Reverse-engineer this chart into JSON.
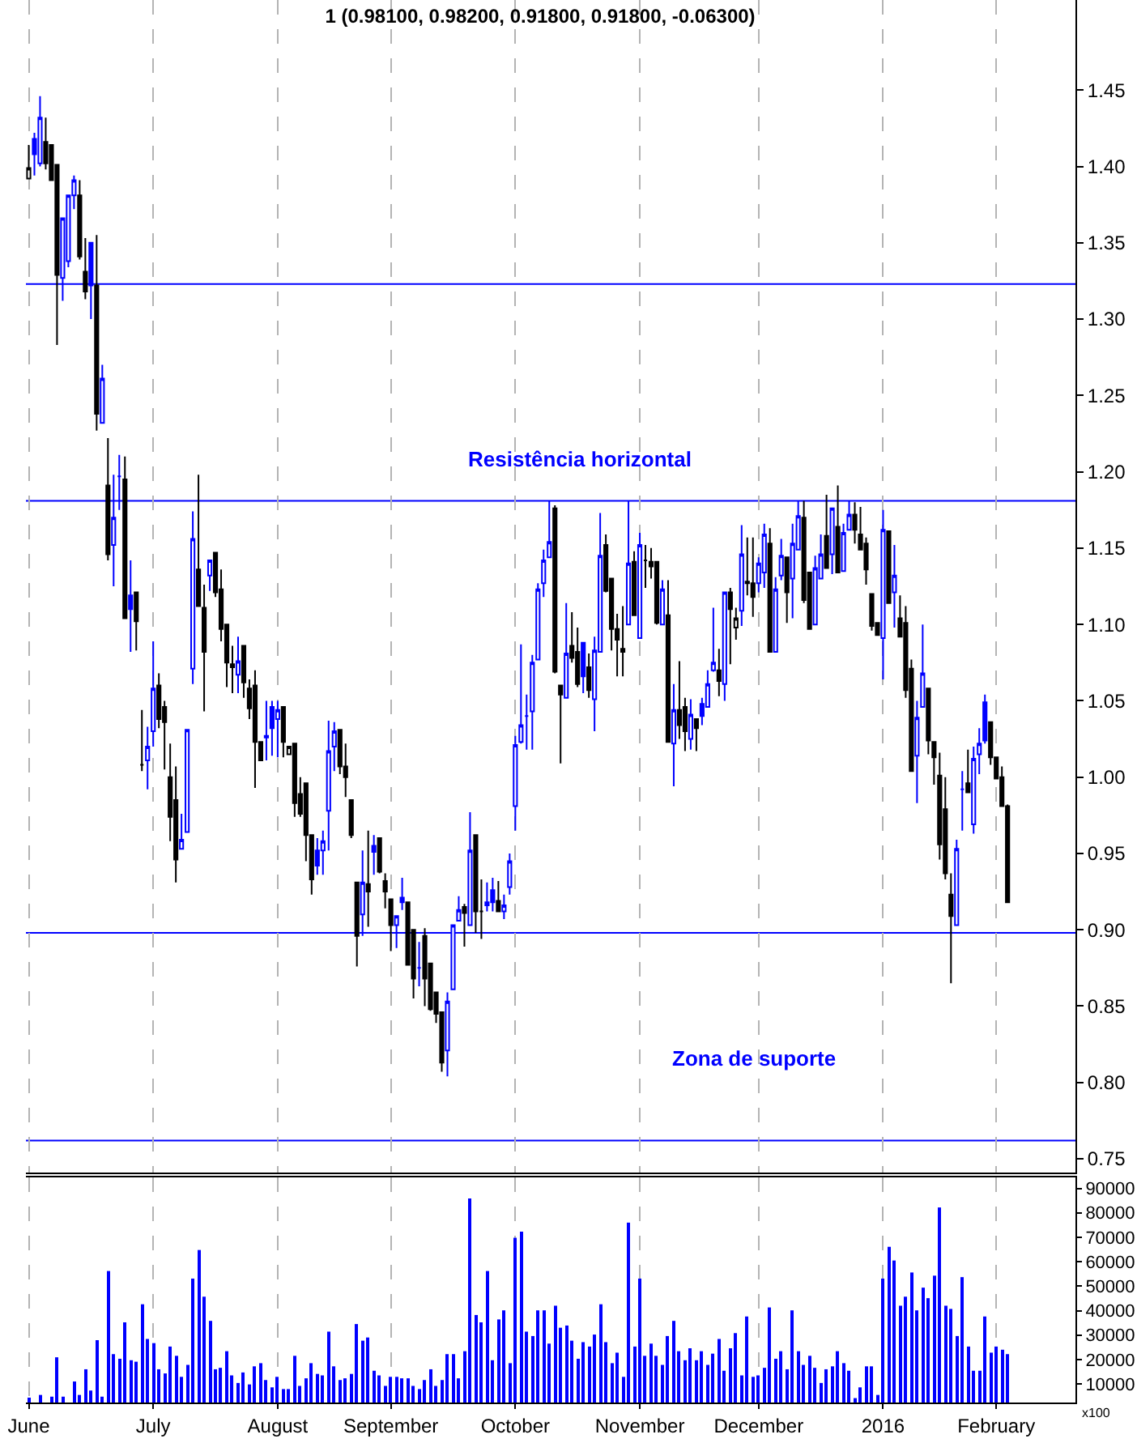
{
  "chart_data": [
    {
      "type": "candlestick",
      "title": "1 (0.98100, 0.98200, 0.91800, 0.91800, -0.06300)",
      "categories": [
        null,
        null,
        null,
        null,
        null,
        null,
        null,
        null,
        null,
        null,
        null,
        null,
        null,
        null,
        null,
        null,
        null,
        null,
        null,
        null,
        null,
        null,
        null,
        null,
        null,
        null,
        null,
        null,
        null,
        null,
        null,
        null,
        null,
        null,
        null,
        null,
        null,
        null,
        null,
        null,
        null,
        null,
        null,
        null,
        null,
        null,
        null,
        null,
        null,
        null,
        null,
        null,
        null,
        null,
        null,
        null,
        null,
        null,
        null,
        null,
        null,
        null,
        null,
        null,
        null,
        null,
        null,
        null,
        null,
        null,
        null,
        null,
        null,
        null,
        null,
        null,
        null,
        null,
        null,
        null,
        null,
        null,
        null,
        null,
        null,
        null,
        null,
        null,
        null,
        null,
        null,
        null,
        null,
        null,
        null,
        null,
        null,
        null,
        null,
        null,
        null,
        null,
        null,
        null,
        null,
        null,
        null,
        null,
        null,
        null,
        null,
        null,
        null,
        null,
        null,
        null,
        null,
        null,
        null,
        null,
        null,
        null,
        null,
        null,
        null,
        null,
        null,
        null,
        null,
        null,
        null,
        null,
        null,
        null,
        null,
        null,
        null,
        null,
        null,
        null,
        null,
        null,
        null,
        null,
        null,
        null,
        null,
        null,
        null,
        null,
        null,
        null,
        null,
        null,
        null,
        null,
        null,
        null,
        null,
        null,
        null,
        null,
        null,
        null,
        null,
        null,
        null,
        null,
        null,
        null,
        null,
        null,
        null,
        null
      ],
      "ohlc": [
        [
          1.392,
          1.414,
          1.392,
          1.399
        ],
        [
          1.418,
          1.422,
          1.394,
          1.408
        ],
        [
          1.402,
          1.446,
          1.4,
          1.432
        ],
        [
          1.416,
          1.432,
          1.398,
          1.402
        ],
        [
          1.414,
          1.414,
          1.391,
          1.391
        ],
        [
          1.401,
          1.401,
          1.283,
          1.329
        ],
        [
          1.327,
          1.366,
          1.312,
          1.366
        ],
        [
          1.338,
          1.381,
          1.334,
          1.381
        ],
        [
          1.381,
          1.394,
          1.372,
          1.391
        ],
        [
          1.381,
          1.391,
          1.339,
          1.341
        ],
        [
          1.331,
          1.353,
          1.313,
          1.318
        ],
        [
          1.35,
          1.35,
          1.3,
          1.322
        ],
        [
          1.322,
          1.355,
          1.227,
          1.238
        ],
        [
          1.232,
          1.27,
          1.232,
          1.261
        ],
        [
          1.191,
          1.222,
          1.142,
          1.146
        ],
        [
          1.152,
          1.198,
          1.125,
          1.17
        ],
        [
          1.197,
          1.211,
          1.175,
          1.197
        ],
        [
          1.195,
          1.21,
          1.104,
          1.104
        ],
        [
          1.119,
          1.142,
          1.082,
          1.11
        ],
        [
          1.121,
          1.121,
          1.083,
          1.102
        ],
        [
          1.008,
          1.044,
          1.004,
          1.008
        ],
        [
          1.011,
          1.033,
          0.992,
          1.02
        ],
        [
          1.03,
          1.089,
          1.02,
          1.058
        ],
        [
          1.06,
          1.068,
          1.032,
          1.038
        ],
        [
          1.046,
          1.05,
          1.005,
          1.036
        ],
        [
          1.0,
          1.022,
          0.958,
          0.974
        ],
        [
          0.985,
          1.007,
          0.931,
          0.946
        ],
        [
          0.953,
          0.976,
          0.953,
          0.959
        ],
        [
          0.964,
          1.031,
          0.964,
          1.031
        ],
        [
          1.071,
          1.174,
          1.061,
          1.156
        ],
        [
          1.136,
          1.198,
          1.112,
          1.112
        ],
        [
          1.111,
          1.126,
          1.043,
          1.082
        ],
        [
          1.132,
          1.142,
          1.122,
          1.142
        ],
        [
          1.147,
          1.147,
          1.118,
          1.121
        ],
        [
          1.123,
          1.136,
          1.089,
          1.097
        ],
        [
          1.1,
          1.1,
          1.059,
          1.075
        ],
        [
          1.072,
          1.086,
          1.055,
          1.074
        ],
        [
          1.067,
          1.092,
          1.055,
          1.076
        ],
        [
          1.086,
          1.086,
          1.052,
          1.062
        ],
        [
          1.058,
          1.064,
          1.038,
          1.045
        ],
        [
          1.06,
          1.07,
          0.993,
          1.023
        ],
        [
          1.023,
          1.023,
          1.011,
          1.011
        ],
        [
          1.026,
          1.05,
          1.011,
          1.027
        ],
        [
          1.046,
          1.05,
          1.014,
          1.032
        ],
        [
          1.038,
          1.05,
          1.013,
          1.044
        ],
        [
          1.046,
          1.046,
          1.013,
          1.023
        ],
        [
          1.015,
          1.02,
          1.015,
          1.02
        ],
        [
          1.022,
          1.022,
          0.974,
          0.983
        ],
        [
          0.989,
          1.0,
          0.974,
          0.976
        ],
        [
          0.996,
          0.996,
          0.945,
          0.962
        ],
        [
          0.962,
          0.962,
          0.923,
          0.933
        ],
        [
          0.952,
          0.96,
          0.936,
          0.942
        ],
        [
          0.952,
          0.965,
          0.936,
          0.958
        ],
        [
          0.978,
          1.037,
          0.952,
          1.017
        ],
        [
          1.02,
          1.036,
          1.004,
          1.03
        ],
        [
          1.031,
          1.031,
          1.002,
          1.007
        ],
        [
          1.007,
          1.022,
          0.987,
          1.0
        ],
        [
          0.985,
          0.985,
          0.96,
          0.962
        ],
        [
          0.931,
          0.931,
          0.876,
          0.896
        ],
        [
          0.91,
          0.952,
          0.896,
          0.931
        ],
        [
          0.93,
          0.965,
          0.902,
          0.925
        ],
        [
          0.955,
          0.962,
          0.936,
          0.951
        ],
        [
          0.96,
          0.96,
          0.937,
          0.938
        ],
        [
          0.932,
          0.937,
          0.914,
          0.925
        ],
        [
          0.92,
          0.92,
          0.886,
          0.903
        ],
        [
          0.903,
          0.909,
          0.888,
          0.909
        ],
        [
          0.921,
          0.934,
          0.913,
          0.918
        ],
        [
          0.918,
          0.918,
          0.877,
          0.877
        ],
        [
          0.9,
          0.9,
          0.855,
          0.868
        ],
        [
          0.875,
          0.892,
          0.863,
          0.875
        ],
        [
          0.896,
          0.901,
          0.85,
          0.868
        ],
        [
          0.878,
          0.878,
          0.847,
          0.848
        ],
        [
          0.859,
          0.859,
          0.839,
          0.845
        ],
        [
          0.846,
          0.846,
          0.807,
          0.813
        ],
        [
          0.821,
          0.859,
          0.804,
          0.853
        ],
        [
          0.861,
          0.903,
          0.861,
          0.903
        ],
        [
          0.906,
          0.922,
          0.906,
          0.913
        ],
        [
          0.915,
          0.917,
          0.889,
          0.911
        ],
        [
          0.903,
          0.977,
          0.903,
          0.952
        ],
        [
          0.962,
          0.962,
          0.898,
          0.912
        ],
        [
          0.912,
          0.933,
          0.894,
          0.912
        ],
        [
          0.918,
          0.931,
          0.912,
          0.916
        ],
        [
          0.926,
          0.934,
          0.912,
          0.918
        ],
        [
          0.919,
          0.932,
          0.912,
          0.912
        ],
        [
          0.912,
          0.923,
          0.907,
          0.916
        ],
        [
          0.928,
          0.95,
          0.923,
          0.945
        ],
        [
          0.981,
          1.027,
          0.965,
          1.021
        ],
        [
          1.023,
          1.087,
          1.022,
          1.034
        ],
        [
          1.04,
          1.054,
          1.018,
          1.04
        ],
        [
          1.043,
          1.08,
          1.018,
          1.075
        ],
        [
          1.077,
          1.127,
          1.077,
          1.123
        ],
        [
          1.127,
          1.149,
          1.118,
          1.142
        ],
        [
          1.144,
          1.181,
          1.144,
          1.154
        ],
        [
          1.176,
          1.178,
          1.068,
          1.069
        ],
        [
          1.06,
          1.06,
          1.009,
          1.054
        ],
        [
          1.052,
          1.114,
          1.052,
          1.081
        ],
        [
          1.086,
          1.108,
          1.075,
          1.078
        ],
        [
          1.082,
          1.098,
          1.059,
          1.061
        ],
        [
          1.088,
          1.088,
          1.055,
          1.066
        ],
        [
          1.072,
          1.081,
          1.052,
          1.057
        ],
        [
          1.051,
          1.092,
          1.03,
          1.083
        ],
        [
          1.082,
          1.173,
          1.082,
          1.145
        ],
        [
          1.152,
          1.159,
          1.121,
          1.122
        ],
        [
          1.13,
          1.13,
          1.083,
          1.097
        ],
        [
          1.097,
          1.107,
          1.066,
          1.09
        ],
        [
          1.084,
          1.112,
          1.066,
          1.082
        ],
        [
          1.1,
          1.181,
          1.1,
          1.14
        ],
        [
          1.141,
          1.148,
          1.106,
          1.106
        ],
        [
          1.091,
          1.16,
          1.091,
          1.152
        ],
        [
          1.142,
          1.152,
          1.124,
          1.142
        ],
        [
          1.141,
          1.15,
          1.13,
          1.138
        ],
        [
          1.141,
          1.141,
          1.1,
          1.101
        ],
        [
          1.1,
          1.129,
          1.1,
          1.123
        ],
        [
          1.106,
          1.129,
          1.023,
          1.023
        ],
        [
          1.022,
          1.061,
          0.994,
          1.044
        ],
        [
          1.044,
          1.076,
          1.025,
          1.034
        ],
        [
          1.046,
          1.052,
          1.017,
          1.03
        ],
        [
          1.025,
          1.051,
          1.018,
          1.041
        ],
        [
          1.038,
          1.038,
          1.017,
          1.032
        ],
        [
          1.048,
          1.052,
          1.034,
          1.04
        ],
        [
          1.046,
          1.07,
          1.046,
          1.061
        ],
        [
          1.07,
          1.111,
          1.069,
          1.075
        ],
        [
          1.07,
          1.084,
          1.053,
          1.063
        ],
        [
          1.061,
          1.121,
          1.05,
          1.121
        ],
        [
          1.121,
          1.124,
          1.074,
          1.11
        ],
        [
          1.098,
          1.111,
          1.09,
          1.104
        ],
        [
          1.109,
          1.165,
          1.099,
          1.146
        ],
        [
          1.128,
          1.157,
          1.119,
          1.127
        ],
        [
          1.127,
          1.157,
          1.105,
          1.118
        ],
        [
          1.127,
          1.144,
          1.121,
          1.14
        ],
        [
          1.134,
          1.166,
          1.124,
          1.159
        ],
        [
          1.153,
          1.163,
          1.082,
          1.082
        ],
        [
          1.082,
          1.131,
          1.082,
          1.123
        ],
        [
          1.132,
          1.156,
          1.129,
          1.145
        ],
        [
          1.144,
          1.144,
          1.101,
          1.121
        ],
        [
          1.13,
          1.166,
          1.104,
          1.153
        ],
        [
          1.149,
          1.181,
          1.149,
          1.171
        ],
        [
          1.17,
          1.181,
          1.114,
          1.116
        ],
        [
          1.134,
          1.134,
          1.097,
          1.097
        ],
        [
          1.1,
          1.145,
          1.1,
          1.137
        ],
        [
          1.13,
          1.159,
          1.13,
          1.146
        ],
        [
          1.158,
          1.185,
          1.137,
          1.137
        ],
        [
          1.146,
          1.176,
          1.133,
          1.176
        ],
        [
          1.164,
          1.191,
          1.134,
          1.134
        ],
        [
          1.135,
          1.166,
          1.135,
          1.16
        ],
        [
          1.162,
          1.181,
          1.162,
          1.172
        ],
        [
          1.172,
          1.18,
          1.153,
          1.162
        ],
        [
          1.159,
          1.177,
          1.149,
          1.149
        ],
        [
          1.153,
          1.157,
          1.126,
          1.136
        ],
        [
          1.12,
          1.12,
          1.096,
          1.099
        ],
        [
          1.101,
          1.101,
          1.093,
          1.093
        ],
        [
          1.091,
          1.175,
          1.064,
          1.162
        ],
        [
          1.161,
          1.161,
          1.114,
          1.114
        ],
        [
          1.121,
          1.152,
          1.098,
          1.132
        ],
        [
          1.104,
          1.119,
          1.092,
          1.092
        ],
        [
          1.101,
          1.112,
          1.052,
          1.057
        ],
        [
          1.071,
          1.077,
          1.004,
          1.004
        ],
        [
          1.014,
          1.05,
          0.983,
          1.039
        ],
        [
          1.046,
          1.1,
          1.046,
          1.068
        ],
        [
          1.058,
          1.058,
          1.015,
          1.024
        ],
        [
          1.023,
          1.023,
          0.995,
          1.013
        ],
        [
          1.001,
          1.016,
          0.946,
          0.956
        ],
        [
          0.979,
          1.0,
          0.933,
          0.937
        ],
        [
          0.923,
          0.937,
          0.865,
          0.909
        ],
        [
          0.903,
          0.959,
          0.903,
          0.953
        ],
        [
          0.992,
          1.004,
          0.965,
          0.992
        ],
        [
          0.996,
          1.018,
          0.99,
          0.99
        ],
        [
          0.969,
          1.02,
          0.963,
          1.012
        ],
        [
          1.015,
          1.032,
          1.002,
          1.022
        ],
        [
          1.049,
          1.054,
          1.022,
          1.024
        ],
        [
          1.036,
          1.036,
          1.008,
          1.013
        ],
        [
          1.013,
          1.013,
          0.999,
          0.999
        ],
        [
          1.0,
          1.007,
          0.981,
          0.981
        ],
        [
          0.981,
          0.982,
          0.918,
          0.918
        ]
      ],
      "colors": [
        "#000000",
        "#0000ff",
        "#0000ff",
        "#000000",
        "#000000",
        "#000000",
        "#0000ff",
        "#0000ff",
        "#0000ff",
        "#000000",
        "#000000",
        "#0000ff",
        "#000000",
        "#0000ff",
        "#000000",
        "#0000ff",
        "#0000ff",
        "#000000",
        "#0000ff",
        "#000000",
        "#000000",
        "#0000ff",
        "#0000ff",
        "#000000",
        "#000000",
        "#000000",
        "#000000",
        "#0000ff",
        "#0000ff",
        "#0000ff",
        "#000000",
        "#000000",
        "#0000ff",
        "#000000",
        "#000000",
        "#000000",
        "#000000",
        "#0000ff",
        "#000000",
        "#000000",
        "#000000",
        "#000000",
        "#0000ff",
        "#0000ff",
        "#0000ff",
        "#000000",
        "#000000",
        "#000000",
        "#000000",
        "#000000",
        "#000000",
        "#0000ff",
        "#0000ff",
        "#0000ff",
        "#0000ff",
        "#000000",
        "#000000",
        "#000000",
        "#000000",
        "#0000ff",
        "#000000",
        "#0000ff",
        "#000000",
        "#000000",
        "#000000",
        "#0000ff",
        "#0000ff",
        "#000000",
        "#000000",
        "#0000ff",
        "#000000",
        "#000000",
        "#000000",
        "#000000",
        "#0000ff",
        "#0000ff",
        "#0000ff",
        "#000000",
        "#0000ff",
        "#000000",
        "#000000",
        "#0000ff",
        "#0000ff",
        "#000000",
        "#0000ff",
        "#0000ff",
        "#0000ff",
        "#0000ff",
        "#0000ff",
        "#0000ff",
        "#0000ff",
        "#0000ff",
        "#0000ff",
        "#000000",
        "#000000",
        "#0000ff",
        "#000000",
        "#000000",
        "#0000ff",
        "#000000",
        "#0000ff",
        "#0000ff",
        "#000000",
        "#000000",
        "#000000",
        "#000000",
        "#0000ff",
        "#000000",
        "#0000ff",
        "#000000",
        "#000000",
        "#000000",
        "#0000ff",
        "#000000",
        "#0000ff",
        "#000000",
        "#000000",
        "#0000ff",
        "#000000",
        "#0000ff",
        "#0000ff",
        "#0000ff",
        "#000000",
        "#0000ff",
        "#000000",
        "#000000",
        "#0000ff",
        "#000000",
        "#000000",
        "#0000ff",
        "#0000ff",
        "#000000",
        "#0000ff",
        "#0000ff",
        "#000000",
        "#0000ff",
        "#0000ff",
        "#000000",
        "#000000",
        "#0000ff",
        "#0000ff",
        "#000000",
        "#0000ff",
        "#000000",
        "#0000ff",
        "#0000ff",
        "#000000",
        "#000000",
        "#000000",
        "#000000",
        "#000000",
        "#0000ff",
        "#000000",
        "#0000ff",
        "#000000",
        "#000000",
        "#000000",
        "#0000ff",
        "#0000ff",
        "#000000",
        "#000000",
        "#000000",
        "#000000",
        "#000000",
        "#0000ff",
        "#0000ff",
        "#000000",
        "#0000ff",
        "#0000ff",
        "#0000ff",
        "#000000",
        "#000000",
        "#000000",
        "#000000"
      ],
      "ylim": [
        0.741,
        1.509
      ],
      "yticks": [
        {
          "value": 0.75,
          "label": "0.75"
        },
        {
          "value": 0.8,
          "label": "0.80"
        },
        {
          "value": 0.85,
          "label": "0.85"
        },
        {
          "value": 0.9,
          "label": "0.90"
        },
        {
          "value": 0.95,
          "label": "0.95"
        },
        {
          "value": 1.0,
          "label": "1.00"
        },
        {
          "value": 1.05,
          "label": "1.05"
        },
        {
          "value": 1.1,
          "label": "1.10"
        },
        {
          "value": 1.15,
          "label": "1.15"
        },
        {
          "value": 1.2,
          "label": "1.20"
        },
        {
          "value": 1.25,
          "label": "1.25"
        },
        {
          "value": 1.3,
          "label": "1.30"
        },
        {
          "value": 1.35,
          "label": "1.35"
        },
        {
          "value": 1.4,
          "label": "1.40"
        },
        {
          "value": 1.45,
          "label": "1.45"
        }
      ],
      "grid": "x",
      "tick_labels": "y",
      "ref_lines": [
        {
          "axis": "y",
          "value": 1.323,
          "color": "#0000ff"
        },
        {
          "axis": "y",
          "value": 1.181,
          "color": "#0000ff"
        },
        {
          "axis": "y",
          "value": 0.898,
          "color": "#0000ff"
        },
        {
          "axis": "y",
          "value": 0.762,
          "color": "#0000ff"
        }
      ],
      "annotations": [
        "Resistência horizontal",
        "Zona de suporte"
      ]
    },
    {
      "type": "bar",
      "categories": [
        "June",
        null,
        null,
        null,
        null,
        null,
        null,
        null,
        null,
        null,
        null,
        null,
        null,
        null,
        null,
        null,
        null,
        null,
        null,
        null,
        null,
        null,
        "July",
        null,
        null,
        null,
        null,
        null,
        null,
        null,
        null,
        null,
        null,
        null,
        null,
        null,
        null,
        null,
        null,
        null,
        null,
        null,
        null,
        null,
        "August",
        null,
        null,
        null,
        null,
        null,
        null,
        null,
        null,
        null,
        null,
        null,
        null,
        null,
        null,
        null,
        null,
        null,
        null,
        null,
        "September",
        null,
        null,
        null,
        null,
        null,
        null,
        null,
        null,
        null,
        null,
        null,
        null,
        null,
        null,
        null,
        null,
        null,
        null,
        null,
        null,
        null,
        "October",
        null,
        null,
        null,
        null,
        null,
        null,
        null,
        null,
        null,
        null,
        null,
        null,
        null,
        null,
        null,
        null,
        null,
        null,
        null,
        null,
        null,
        "November",
        null,
        null,
        null,
        null,
        null,
        null,
        null,
        null,
        null,
        null,
        null,
        null,
        null,
        null,
        null,
        null,
        null,
        null,
        null,
        null,
        "December",
        null,
        null,
        null,
        null,
        null,
        null,
        null,
        null,
        null,
        null,
        null,
        null,
        null,
        null,
        null,
        null,
        null,
        null,
        null,
        null,
        null,
        "2016",
        null,
        null,
        null,
        null,
        null,
        null,
        null,
        null,
        null,
        null,
        null,
        null,
        null,
        null,
        null,
        null,
        null,
        null,
        null,
        "February",
        null,
        null
      ],
      "values": [
        4400,
        null,
        5500,
        null,
        4800,
        20900,
        4800,
        null,
        11000,
        5500,
        16000,
        7300,
        27900,
        4800,
        56200,
        22200,
        20300,
        35200,
        19700,
        19100,
        42600,
        28400,
        26700,
        16000,
        14300,
        25300,
        21500,
        12900,
        17800,
        53100,
        64800,
        45700,
        35800,
        16000,
        16600,
        23400,
        13500,
        10400,
        14700,
        9800,
        17200,
        18500,
        11600,
        8600,
        12900,
        7900,
        7900,
        21500,
        9200,
        12300,
        18500,
        14100,
        13500,
        31400,
        17200,
        11600,
        12300,
        14100,
        34500,
        27700,
        29000,
        15400,
        13500,
        9200,
        12900,
        12900,
        12300,
        12300,
        9200,
        7900,
        11600,
        16000,
        9200,
        11600,
        22200,
        22200,
        12300,
        23400,
        85900,
        38200,
        35200,
        56200,
        19700,
        36400,
        40100,
        18500,
        69800,
        72300,
        31400,
        29600,
        40100,
        40100,
        26500,
        42000,
        33000,
        33900,
        27700,
        20300,
        27100,
        25300,
        30200,
        42600,
        27100,
        18500,
        22800,
        12900,
        76000,
        25300,
        53100,
        21500,
        26500,
        21500,
        17800,
        29600,
        35800,
        23400,
        19700,
        24600,
        19700,
        23400,
        17800,
        22400,
        28400,
        15400,
        24600,
        30800,
        13500,
        37600,
        12900,
        13500,
        16600,
        41300,
        20300,
        23400,
        16000,
        40100,
        23400,
        17800,
        21500,
        16600,
        10400,
        16000,
        17200,
        23400,
        18500,
        15400,
        4200,
        8600,
        17200,
        17200,
        5500,
        53100,
        66100,
        60500,
        42000,
        45700,
        55600,
        40100,
        49400,
        45100,
        54300,
        82200,
        42000,
        40700,
        29600,
        53700,
        25300,
        15400,
        15400,
        37600,
        22800,
        25300,
        24000,
        22200
      ],
      "color": "#0000ff",
      "ylim": [
        2400,
        94500
      ],
      "yticks": [
        10000,
        20000,
        30000,
        40000,
        50000,
        60000,
        70000,
        80000,
        90000
      ],
      "grid": "x",
      "annotations": [
        "x100"
      ]
    }
  ]
}
